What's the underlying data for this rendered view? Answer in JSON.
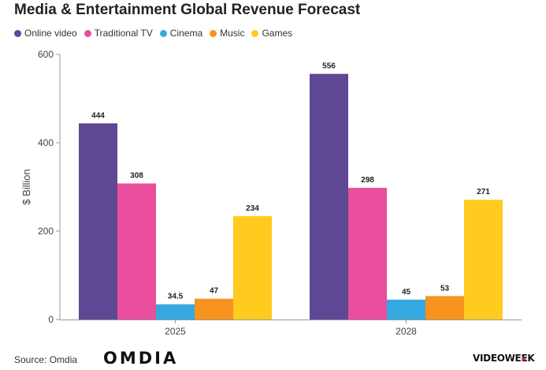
{
  "title": "Media & Entertainment Global Revenue Forecast",
  "legend": [
    {
      "label": "Online video",
      "color": "#5e4793"
    },
    {
      "label": "Traditional TV",
      "color": "#e94f9c"
    },
    {
      "label": "Cinema",
      "color": "#36a9e1"
    },
    {
      "label": "Music",
      "color": "#f7931e"
    },
    {
      "label": "Games",
      "color": "#ffcb1f"
    }
  ],
  "chart_data": {
    "type": "bar",
    "title": "Media & Entertainment Global Revenue Forecast",
    "xlabel": "",
    "ylabel": "$ Billion",
    "ylim": [
      0,
      600
    ],
    "yticks": [
      0,
      200,
      400,
      600
    ],
    "grid": false,
    "legend_position": "top-left",
    "categories": [
      "2025",
      "2028"
    ],
    "series": [
      {
        "name": "Online video",
        "color": "#5e4793",
        "values": [
          444,
          556
        ],
        "labels": [
          "444",
          "556"
        ]
      },
      {
        "name": "Traditional TV",
        "color": "#e94f9c",
        "values": [
          308,
          298
        ],
        "labels": [
          "308",
          "298"
        ]
      },
      {
        "name": "Cinema",
        "color": "#36a9e1",
        "values": [
          34.5,
          45
        ],
        "labels": [
          "34.5",
          "45"
        ]
      },
      {
        "name": "Music",
        "color": "#f7931e",
        "values": [
          47,
          53
        ],
        "labels": [
          "47",
          "53"
        ]
      },
      {
        "name": "Games",
        "color": "#ffcb1f",
        "values": [
          234,
          271
        ],
        "labels": [
          "234",
          "271"
        ]
      }
    ]
  },
  "footer": {
    "source": "Source: Omdia",
    "logo_left": "OMDIA",
    "logo_right": "VIDEOWEEK"
  }
}
